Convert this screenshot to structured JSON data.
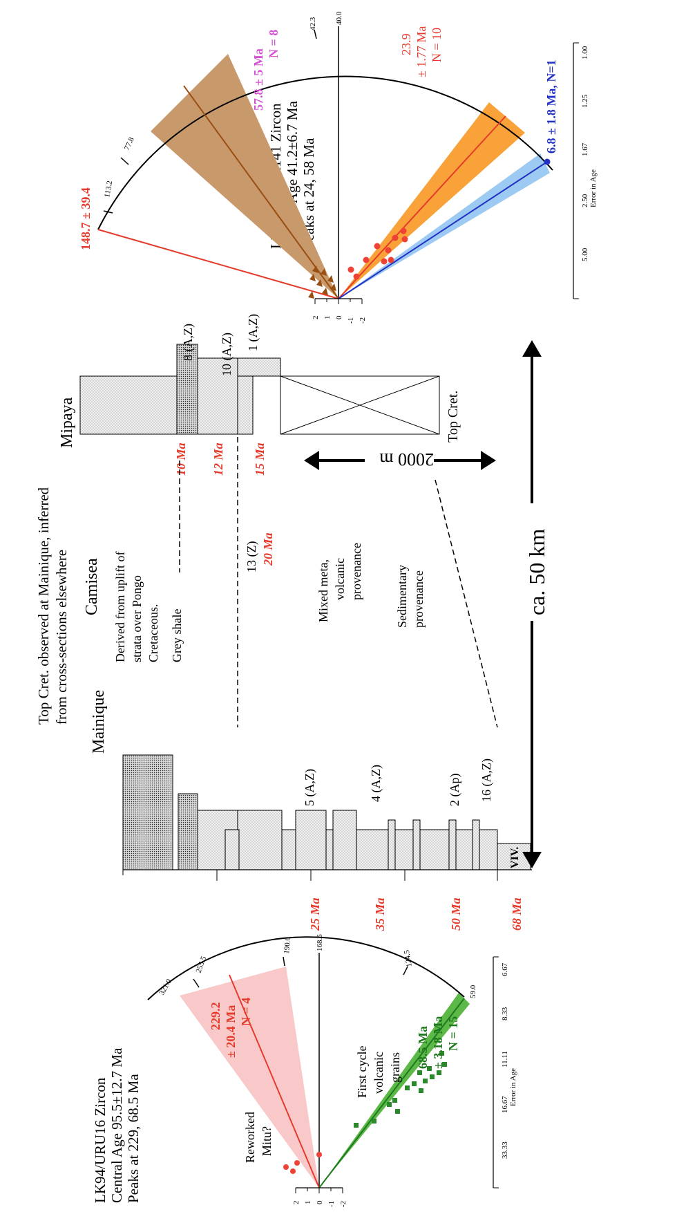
{
  "radial_top": {
    "title_lines": [
      "LK94/PICHA141 Zircon",
      "Central Age 41.2±6.7 Ma",
      "Peaks at 24, 58 Ma"
    ],
    "arc_ticks": [
      "113.2",
      "77.8",
      "42.3",
      "40.0"
    ],
    "error_axis": {
      "title": "Error in Age",
      "ticks": [
        "5.00",
        "2.50",
        "1.67",
        "1.25",
        "1.00"
      ]
    },
    "z_ticks": [
      "2",
      "1",
      "0",
      "-1",
      "-2"
    ],
    "label_148": "148.7 ± 39.4",
    "label_57": "57.8 ± 5 Ma",
    "label_57_n": "N = 8",
    "label_23": "23.9",
    "label_23_err": "± 1.77 Ma",
    "label_23_n": "N = 10",
    "label_6": "6.8 ± 1.8 Ma, N=1",
    "colors": {
      "brown": "#c8996b",
      "orange": "#f8a239",
      "blue": "#9ccaf2"
    }
  },
  "radial_bottom": {
    "title_lines": [
      "LK94/URU16 Zircon",
      "Central Age 95.5±12.7 Ma",
      "Peaks at 229, 68.5 Ma"
    ],
    "arc_ticks": [
      "321.0",
      "255.5",
      "190.0",
      "168.6",
      "124.5",
      "59.0"
    ],
    "error_axis": {
      "title": "Error in Age",
      "ticks": [
        "33.33",
        "16.67",
        "11.11",
        "8.33",
        "6.67"
      ]
    },
    "z_ticks": [
      "2",
      "1",
      "0",
      "-1",
      "-2"
    ],
    "label_229": "229.2",
    "label_229_err": "± 20.4 Ma",
    "label_229_n": "N = 4",
    "label_68": "68.5 Ma",
    "label_68_err": "± 3.18 Ma",
    "label_68_n": "N = 15",
    "annotation_reworked": [
      "Reworked",
      "Mitu?"
    ],
    "annotation_first_cycle": [
      "First cycle",
      "volcanic",
      "grains"
    ],
    "colors": {
      "pink": "#f9c9c9",
      "green": "#5cb847"
    }
  },
  "stratigraphy": {
    "top_note": [
      "Top Cret. observed at Mainique, inferred",
      "from cross-sections elsewhere"
    ],
    "sections": [
      "Mainique",
      "Camisea",
      "Mipaya"
    ],
    "camisea_notes": {
      "derived": [
        "Derived from uplift of",
        "strata over Pongo",
        "Cretaceous."
      ],
      "grey_shale": "Grey shale",
      "mixed": [
        "Mixed meta,",
        "volcanic",
        "provenance"
      ],
      "sedimentary": [
        "Sedimentary",
        "provenance"
      ]
    },
    "sample_labels": [
      "5 (A,Z)",
      "4 (A,Z)",
      "2 (Ap)",
      "16 (A,Z)",
      "13 (Z)",
      "8 (A,Z)",
      "10 (A,Z)",
      "1 (A,Z)"
    ],
    "ages_mainique": [
      "25 Ma",
      "35 Ma",
      "50 Ma",
      "68 Ma"
    ],
    "age_camisea": "20 Ma",
    "ages_mipaya": [
      "10 Ma",
      "12 Ma",
      "15 Ma"
    ],
    "viv": "VIV.",
    "top_cret": "Top Cret.",
    "scale_2000": "2000 m",
    "scale_50km": "ca. 50 km"
  }
}
